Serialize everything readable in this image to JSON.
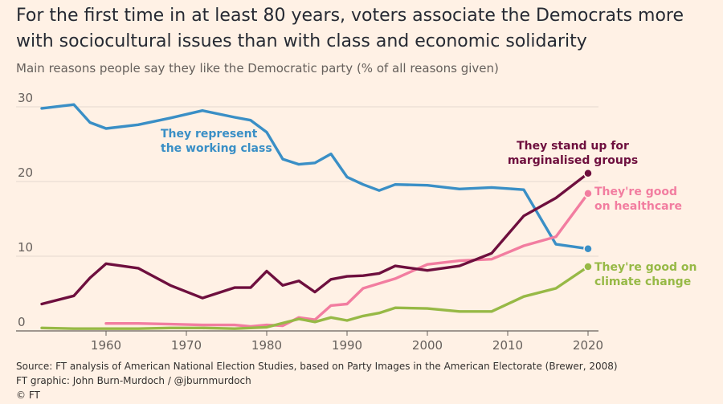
{
  "header": {
    "title": "For the first time in at least 80 years, voters associate the Democrats more with sociocultural issues than with class and economic solidarity",
    "subtitle": "Main reasons people say they like the Democratic party (% of all reasons given)"
  },
  "footer": {
    "source": "Source: FT analysis of American National Election Studies, based on Party Images in the American Electorate (Brewer, 2008)",
    "credit": "FT graphic: John Burn-Murdoch / @jburnmurdoch",
    "copyright": "© FT"
  },
  "chart_data": {
    "type": "line",
    "title": "For the first time in at least 80 years, voters associate the Democrats more with sociocultural issues than with class and economic solidarity",
    "subtitle": "Main reasons people say they like the Democratic party (% of all reasons given)",
    "xlabel": "",
    "ylabel": "",
    "xlim": [
      1952,
      2020
    ],
    "ylim": [
      0,
      30
    ],
    "xticks": [
      1960,
      1970,
      1980,
      1990,
      2000,
      2010,
      2020
    ],
    "yticks": [
      0,
      10,
      20,
      30
    ],
    "grid": true,
    "legend": "direct labels",
    "series": [
      {
        "name": "They represent the working class",
        "color": "#3a8fc6",
        "label_lines": [
          "They represent",
          "the working class"
        ],
        "x": [
          1952,
          1956,
          1958,
          1960,
          1964,
          1968,
          1972,
          1976,
          1978,
          1980,
          1982,
          1984,
          1986,
          1988,
          1990,
          1992,
          1994,
          1996,
          2000,
          2004,
          2008,
          2012,
          2016,
          2020
        ],
        "y": [
          29.8,
          30.3,
          27.9,
          27.1,
          27.6,
          28.5,
          29.5,
          28.6,
          28.2,
          26.6,
          23.0,
          22.3,
          22.5,
          23.7,
          20.6,
          19.6,
          18.8,
          19.6,
          19.5,
          19.0,
          19.2,
          18.9,
          11.6,
          11.0
        ]
      },
      {
        "name": "They stand up for marginalised groups",
        "color": "#6e0f3e",
        "label_lines": [
          "They stand up for",
          "marginalised groups"
        ],
        "x": [
          1952,
          1956,
          1958,
          1960,
          1964,
          1968,
          1972,
          1976,
          1978,
          1980,
          1982,
          1984,
          1986,
          1988,
          1990,
          1992,
          1994,
          1996,
          2000,
          2004,
          2008,
          2012,
          2016,
          2020
        ],
        "y": [
          3.6,
          4.7,
          7.1,
          9.0,
          8.4,
          6.1,
          4.4,
          5.8,
          5.8,
          8.0,
          6.1,
          6.7,
          5.2,
          6.9,
          7.3,
          7.4,
          7.7,
          8.7,
          8.1,
          8.7,
          10.4,
          15.4,
          17.8,
          21.1
        ]
      },
      {
        "name": "They're good on healthcare",
        "color": "#f27da0",
        "label_lines": [
          "They're good",
          "on healthcare"
        ],
        "x": [
          1960,
          1964,
          1968,
          1972,
          1976,
          1978,
          1980,
          1982,
          1984,
          1986,
          1988,
          1990,
          1992,
          1996,
          2000,
          2004,
          2008,
          2012,
          2016,
          2020
        ],
        "y": [
          1.0,
          1.0,
          0.9,
          0.8,
          0.8,
          0.6,
          0.8,
          0.7,
          1.8,
          1.5,
          3.4,
          3.6,
          5.7,
          7.0,
          8.9,
          9.4,
          9.6,
          11.4,
          12.6,
          18.4
        ]
      },
      {
        "name": "They're good on climate change",
        "color": "#97b946",
        "label_lines": [
          "They're good on",
          "climate change"
        ],
        "x": [
          1952,
          1956,
          1960,
          1964,
          1968,
          1972,
          1976,
          1980,
          1984,
          1986,
          1988,
          1990,
          1992,
          1994,
          1996,
          2000,
          2004,
          2008,
          2012,
          2016,
          2020
        ],
        "y": [
          0.4,
          0.3,
          0.3,
          0.3,
          0.4,
          0.4,
          0.3,
          0.5,
          1.6,
          1.2,
          1.8,
          1.4,
          2.0,
          2.4,
          3.1,
          3.0,
          2.6,
          2.6,
          4.6,
          5.7,
          8.6
        ]
      }
    ]
  }
}
